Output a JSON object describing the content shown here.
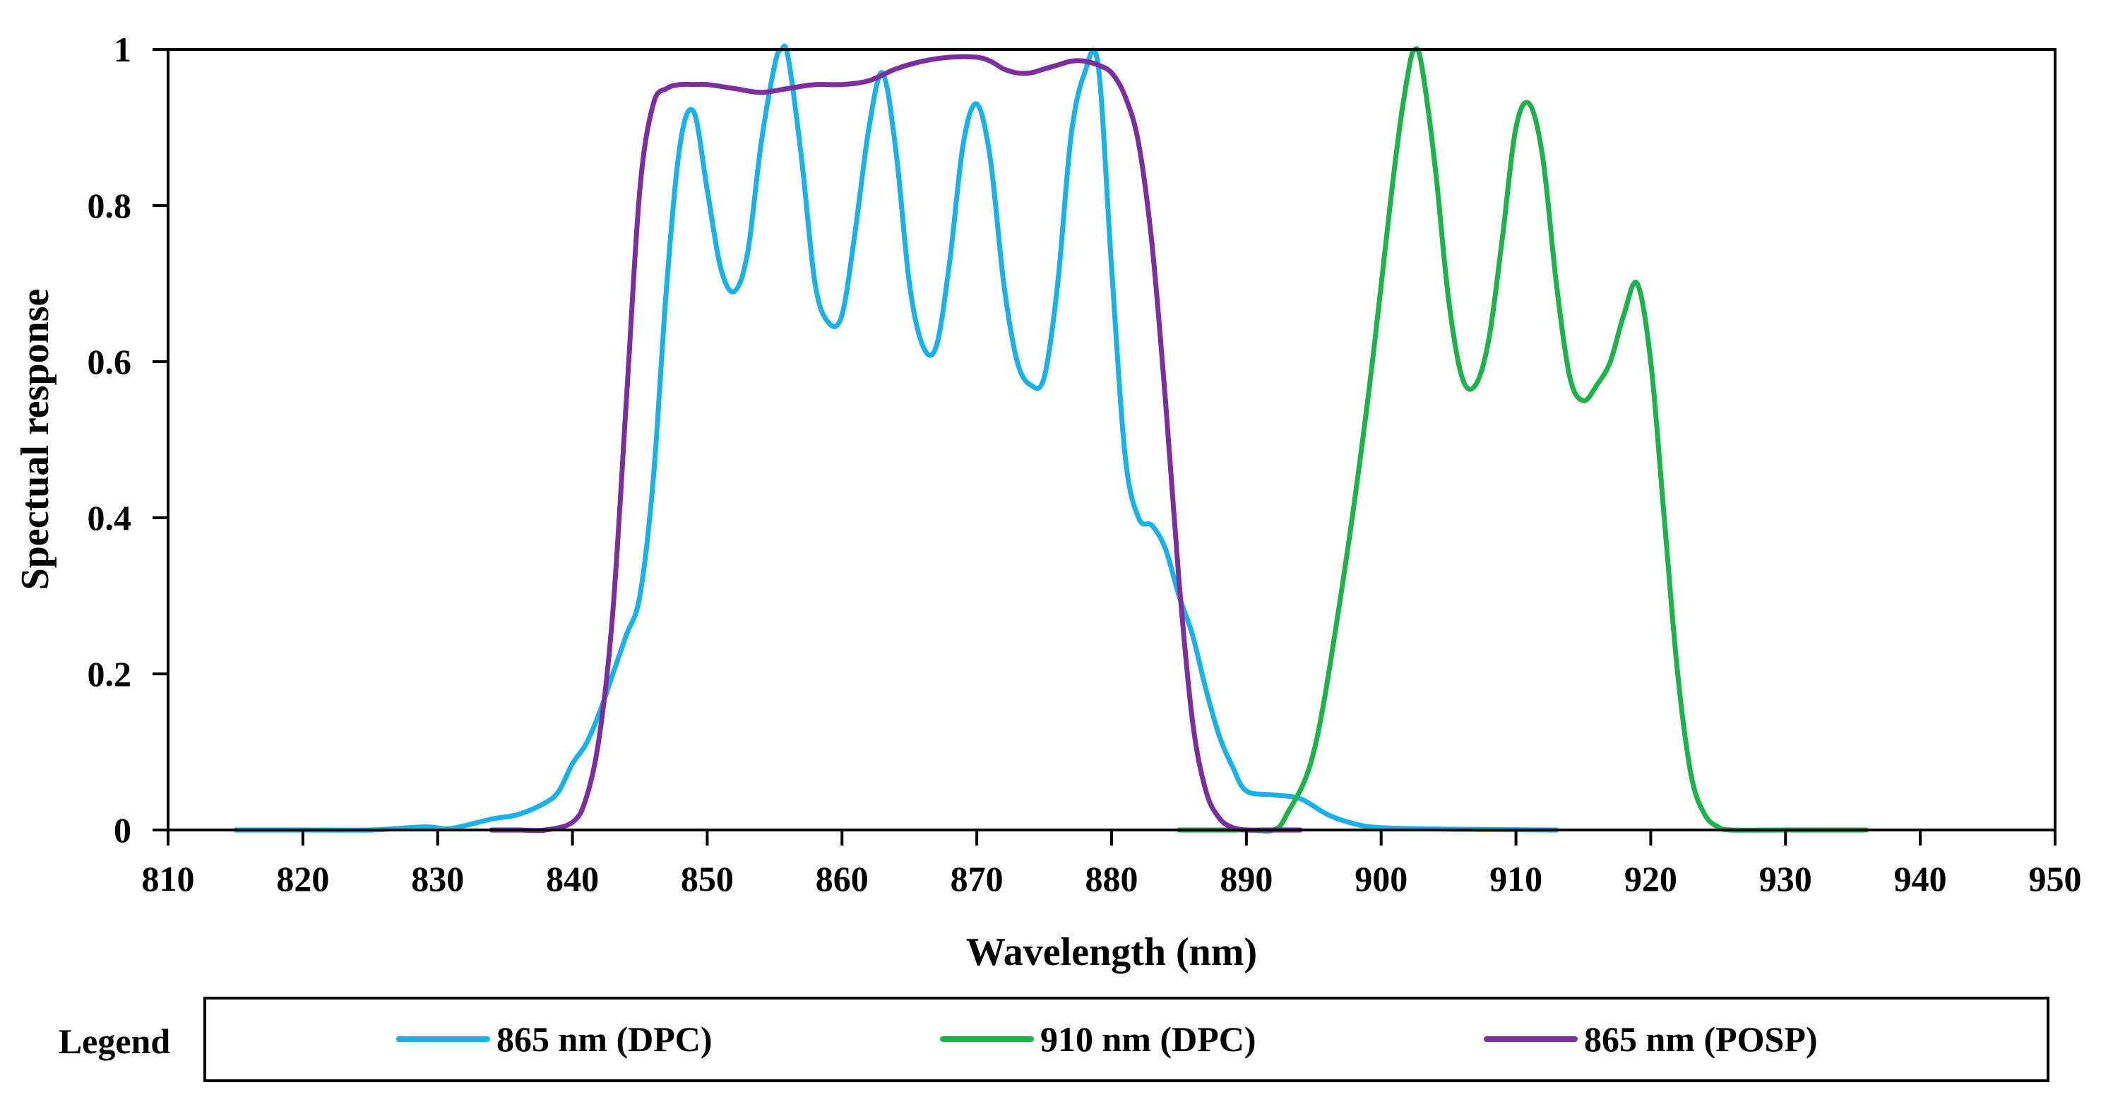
{
  "chart_data": {
    "type": "line",
    "title": "",
    "xlabel": "Wavelength (nm)",
    "ylabel": "Spectual response",
    "xlim": [
      810,
      950
    ],
    "ylim": [
      0,
      1
    ],
    "x_ticks": [
      810,
      820,
      830,
      840,
      850,
      860,
      870,
      880,
      890,
      900,
      910,
      920,
      930,
      940,
      950
    ],
    "y_ticks": [
      0,
      0.2,
      0.4,
      0.6,
      0.8,
      1
    ],
    "y_tick_labels": [
      "0",
      "0.2",
      "0.4",
      "0.6",
      "0.8",
      "1"
    ],
    "grid": false,
    "legend": {
      "title": "Legend",
      "placement": "bottom"
    },
    "series": [
      {
        "name": "865 nm (DPC)",
        "color": "#1ab0e8",
        "x": [
          815,
          820,
          825,
          829,
          831,
          834,
          836,
          838,
          839,
          840,
          841,
          842,
          843,
          844,
          845,
          846,
          847,
          848,
          849,
          850,
          851,
          852,
          853,
          854,
          855,
          855.5,
          856,
          857,
          858,
          859,
          860,
          861,
          862,
          863,
          864,
          865,
          866,
          867,
          868,
          869,
          870,
          871,
          872,
          873,
          874,
          875,
          876,
          877,
          878,
          879,
          880,
          881,
          882,
          883,
          884,
          885,
          886,
          887,
          888,
          889,
          890,
          892,
          894,
          896,
          898,
          900,
          905,
          913
        ],
        "y": [
          0,
          0,
          0,
          0.004,
          0.002,
          0.014,
          0.02,
          0.035,
          0.05,
          0.085,
          0.11,
          0.15,
          0.2,
          0.25,
          0.3,
          0.45,
          0.7,
          0.88,
          0.92,
          0.82,
          0.72,
          0.69,
          0.74,
          0.88,
          0.98,
          1.0,
          0.99,
          0.86,
          0.7,
          0.65,
          0.66,
          0.77,
          0.9,
          0.97,
          0.87,
          0.7,
          0.62,
          0.62,
          0.73,
          0.88,
          0.93,
          0.86,
          0.7,
          0.6,
          0.57,
          0.58,
          0.7,
          0.89,
          0.97,
          0.98,
          0.72,
          0.48,
          0.4,
          0.39,
          0.36,
          0.3,
          0.25,
          0.18,
          0.12,
          0.08,
          0.05,
          0.045,
          0.04,
          0.02,
          0.008,
          0.003,
          0.001,
          0
        ]
      },
      {
        "name": "910 nm (DPC)",
        "color": "#1db34a",
        "x": [
          885,
          890,
          892,
          893,
          895,
          897,
          899,
          901,
          902,
          902.5,
          903,
          904,
          905,
          906,
          907,
          908,
          909,
          910,
          911,
          912,
          913,
          914,
          915,
          916,
          917,
          918,
          919,
          920,
          921,
          922,
          923,
          924,
          925,
          926,
          930,
          936
        ],
        "y": [
          0,
          0,
          0,
          0.02,
          0.1,
          0.3,
          0.55,
          0.85,
          0.97,
          1.0,
          0.98,
          0.85,
          0.68,
          0.58,
          0.57,
          0.63,
          0.76,
          0.9,
          0.93,
          0.86,
          0.7,
          0.58,
          0.55,
          0.57,
          0.6,
          0.66,
          0.7,
          0.6,
          0.4,
          0.2,
          0.07,
          0.02,
          0.004,
          0,
          0,
          0
        ]
      },
      {
        "name": "865 nm (POSP)",
        "color": "#7b2f9e",
        "x": [
          834,
          836,
          838,
          840,
          841,
          842,
          843,
          844,
          845,
          846,
          847,
          848,
          849,
          850,
          852,
          854,
          856,
          858,
          860,
          862,
          864,
          866,
          868,
          870,
          871,
          872,
          873,
          874,
          875,
          876,
          877,
          878,
          879,
          880,
          881,
          882,
          883,
          884,
          885,
          886,
          887,
          888,
          889,
          890,
          891,
          892,
          894
        ],
        "y": [
          0,
          0,
          0,
          0.01,
          0.04,
          0.12,
          0.28,
          0.55,
          0.82,
          0.93,
          0.95,
          0.955,
          0.955,
          0.955,
          0.95,
          0.945,
          0.95,
          0.955,
          0.955,
          0.96,
          0.975,
          0.985,
          0.99,
          0.99,
          0.985,
          0.975,
          0.97,
          0.97,
          0.975,
          0.98,
          0.985,
          0.985,
          0.98,
          0.97,
          0.94,
          0.88,
          0.75,
          0.55,
          0.32,
          0.14,
          0.05,
          0.015,
          0.003,
          0,
          0,
          0,
          0
        ]
      }
    ]
  }
}
